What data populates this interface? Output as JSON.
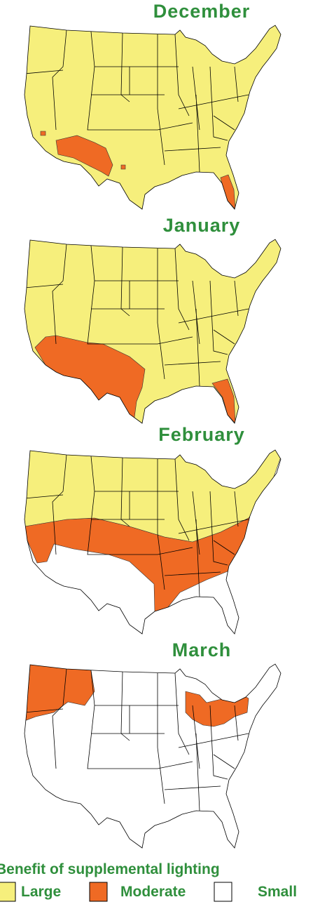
{
  "maps": [
    {
      "title": "December"
    },
    {
      "title": "January"
    },
    {
      "title": "February"
    },
    {
      "title": "March"
    }
  ],
  "legend": {
    "title": "Benefit of supplemental lighting",
    "items": [
      {
        "label": "Large",
        "color": "#f6ef7c"
      },
      {
        "label": "Moderate",
        "color": "#ef6a24"
      },
      {
        "label": "Small",
        "color": "#ffffff"
      }
    ]
  }
}
